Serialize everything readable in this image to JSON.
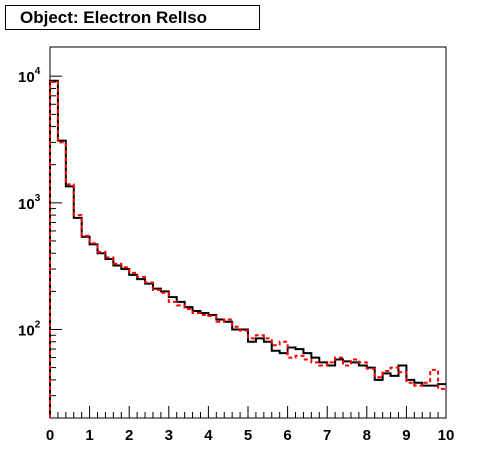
{
  "title": "Object: Electron RelIso",
  "chart_data": {
    "type": "histogram",
    "title": "Object: Electron RelIso",
    "xlabel": "",
    "ylabel": "",
    "x_scale": "linear",
    "y_scale": "log",
    "xlim": [
      0,
      10
    ],
    "ylim": [
      20,
      17000
    ],
    "grid": false,
    "x_ticks": [
      "0",
      "1",
      "2",
      "3",
      "4",
      "5",
      "6",
      "7",
      "8",
      "9",
      "10"
    ],
    "y_ticks": [
      {
        "base": "10",
        "exp": "2",
        "value": 100
      },
      {
        "base": "10",
        "exp": "3",
        "value": 1000
      },
      {
        "base": "10",
        "exp": "4",
        "value": 10000
      }
    ],
    "bin_edges_start": 0,
    "bin_width": 0.2,
    "series": [
      {
        "color": "#000000",
        "style": "solid",
        "values": [
          9200,
          3100,
          1350,
          760,
          540,
          470,
          400,
          360,
          320,
          300,
          270,
          250,
          230,
          210,
          200,
          180,
          165,
          150,
          140,
          135,
          130,
          120,
          115,
          100,
          100,
          80,
          85,
          80,
          68,
          65,
          72,
          70,
          65,
          60,
          55,
          52,
          58,
          56,
          55,
          52,
          50,
          40,
          45,
          43,
          52,
          40,
          38,
          36,
          36,
          37
        ]
      },
      {
        "color": "#ff0000",
        "style": "dashed",
        "values": [
          9000,
          3000,
          1400,
          800,
          550,
          480,
          410,
          370,
          330,
          310,
          280,
          260,
          235,
          205,
          195,
          165,
          155,
          145,
          135,
          130,
          128,
          115,
          120,
          105,
          98,
          85,
          90,
          85,
          75,
          80,
          60,
          62,
          58,
          55,
          52,
          55,
          60,
          52,
          58,
          55,
          49,
          42,
          47,
          50,
          46,
          38,
          36,
          38,
          48,
          34
        ]
      }
    ]
  }
}
